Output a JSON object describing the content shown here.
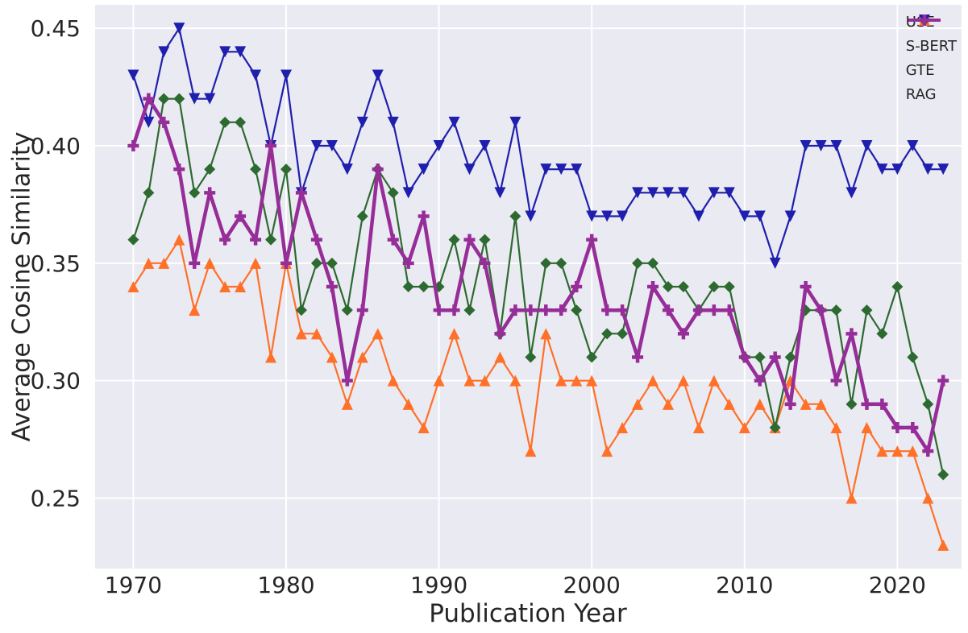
{
  "chart_data": {
    "type": "line",
    "title": "",
    "xlabel": "Publication Year",
    "ylabel": "Average Cosine Similarity",
    "x": [
      1970,
      1971,
      1972,
      1973,
      1974,
      1975,
      1976,
      1977,
      1978,
      1979,
      1980,
      1981,
      1982,
      1983,
      1984,
      1985,
      1986,
      1987,
      1988,
      1989,
      1990,
      1991,
      1992,
      1993,
      1994,
      1995,
      1996,
      1997,
      1998,
      1999,
      2000,
      2001,
      2002,
      2003,
      2004,
      2005,
      2006,
      2007,
      2008,
      2009,
      2010,
      2011,
      2012,
      2013,
      2014,
      2015,
      2016,
      2017,
      2018,
      2019,
      2020,
      2021,
      2022,
      2023
    ],
    "series": [
      {
        "name": "USE",
        "color": "#ff7028",
        "marker": "triangle-up",
        "line_width": 2.2,
        "values": [
          0.34,
          0.35,
          0.35,
          0.36,
          0.33,
          0.35,
          0.34,
          0.34,
          0.35,
          0.31,
          0.35,
          0.32,
          0.32,
          0.31,
          0.29,
          0.31,
          0.32,
          0.3,
          0.29,
          0.28,
          0.3,
          0.32,
          0.3,
          0.3,
          0.31,
          0.3,
          0.27,
          0.32,
          0.3,
          0.3,
          0.3,
          0.27,
          0.28,
          0.29,
          0.3,
          0.29,
          0.3,
          0.28,
          0.3,
          0.29,
          0.28,
          0.29,
          0.28,
          0.3,
          0.29,
          0.29,
          0.28,
          0.25,
          0.28,
          0.27,
          0.27,
          0.27,
          0.25,
          0.23
        ]
      },
      {
        "name": "S-BERT",
        "color": "#2d6a30",
        "marker": "diamond",
        "line_width": 2.2,
        "values": [
          0.36,
          0.38,
          0.42,
          0.42,
          0.38,
          0.39,
          0.41,
          0.41,
          0.39,
          0.36,
          0.39,
          0.33,
          0.35,
          0.35,
          0.33,
          0.37,
          0.39,
          0.38,
          0.34,
          0.34,
          0.34,
          0.36,
          0.33,
          0.36,
          0.32,
          0.37,
          0.31,
          0.35,
          0.35,
          0.33,
          0.31,
          0.32,
          0.32,
          0.35,
          0.35,
          0.34,
          0.34,
          0.33,
          0.34,
          0.34,
          0.31,
          0.31,
          0.28,
          0.31,
          0.33,
          0.33,
          0.33,
          0.29,
          0.33,
          0.32,
          0.34,
          0.31,
          0.29,
          0.26
        ]
      },
      {
        "name": "GTE",
        "color": "#1f1fae",
        "marker": "triangle-down",
        "line_width": 2.2,
        "values": [
          0.43,
          0.41,
          0.44,
          0.45,
          0.42,
          0.42,
          0.44,
          0.44,
          0.43,
          0.4,
          0.43,
          0.38,
          0.4,
          0.4,
          0.39,
          0.41,
          0.43,
          0.41,
          0.38,
          0.39,
          0.4,
          0.41,
          0.39,
          0.4,
          0.38,
          0.41,
          0.37,
          0.39,
          0.39,
          0.39,
          0.37,
          0.37,
          0.37,
          0.38,
          0.38,
          0.38,
          0.38,
          0.37,
          0.38,
          0.38,
          0.37,
          0.37,
          0.35,
          0.37,
          0.4,
          0.4,
          0.4,
          0.38,
          0.4,
          0.39,
          0.39,
          0.4,
          0.39,
          0.39
        ]
      },
      {
        "name": "RAG",
        "color": "#962d98",
        "marker": "plus",
        "line_width": 4.5,
        "values": [
          0.4,
          0.42,
          0.41,
          0.39,
          0.35,
          0.38,
          0.36,
          0.37,
          0.36,
          0.4,
          0.35,
          0.38,
          0.36,
          0.34,
          0.3,
          0.33,
          0.39,
          0.36,
          0.35,
          0.37,
          0.33,
          0.33,
          0.36,
          0.35,
          0.32,
          0.33,
          0.33,
          0.33,
          0.33,
          0.34,
          0.36,
          0.33,
          0.33,
          0.31,
          0.34,
          0.33,
          0.32,
          0.33,
          0.33,
          0.33,
          0.31,
          0.3,
          0.31,
          0.29,
          0.34,
          0.33,
          0.3,
          0.32,
          0.29,
          0.29,
          0.28,
          0.28,
          0.27,
          0.3
        ]
      }
    ],
    "xlim": [
      1967.5,
      2024.2
    ],
    "ylim": [
      0.22,
      0.46
    ],
    "x_ticks": [
      1970,
      1980,
      1990,
      2000,
      2010,
      2020
    ],
    "x_tick_labels": [
      "1970",
      "1980",
      "1990",
      "2000",
      "2010",
      "2020"
    ],
    "y_ticks": [
      0.25,
      0.3,
      0.35,
      0.4,
      0.45
    ],
    "y_tick_labels": [
      "0.25",
      "0.30",
      "0.35",
      "0.40",
      "0.45"
    ],
    "grid": true,
    "grid_color": "#ffffff",
    "plot_background": "#eaeaf2",
    "figure_background": "#ffffff",
    "text_color": "#262626",
    "legend_position": "upper right"
  }
}
